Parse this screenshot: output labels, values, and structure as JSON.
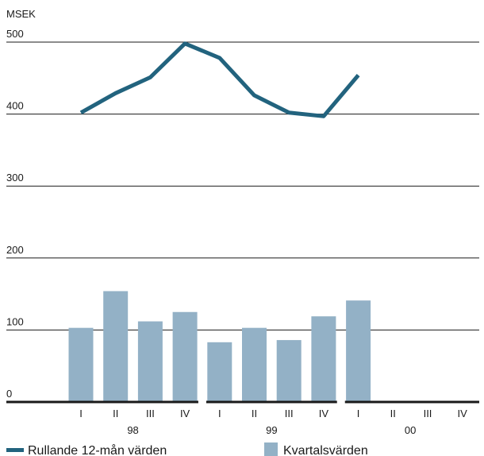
{
  "chart_data": {
    "type": "bar",
    "ylabel": "MSEK",
    "ylim": [
      0,
      500
    ],
    "yticks": [
      0,
      100,
      200,
      300,
      400,
      500
    ],
    "grid": true,
    "categories": [
      "I",
      "II",
      "III",
      "IV",
      "I",
      "II",
      "III",
      "IV",
      "I",
      "II",
      "III",
      "IV"
    ],
    "years": [
      {
        "label": "98",
        "quarters": [
          0,
          1,
          2,
          3
        ]
      },
      {
        "label": "99",
        "quarters": [
          4,
          5,
          6,
          7
        ]
      },
      {
        "label": "00",
        "quarters": [
          8,
          9,
          10,
          11
        ]
      }
    ],
    "series": [
      {
        "name": "Kvartalsvärden",
        "type": "bar",
        "color": "#93b1c6",
        "values": [
          103,
          154,
          112,
          125,
          83,
          103,
          86,
          119,
          141,
          null,
          null,
          null
        ]
      },
      {
        "name": "Rullande 12-mån värden",
        "type": "line",
        "color": "#22637e",
        "values": [
          402,
          429,
          451,
          498,
          478,
          426,
          402,
          397,
          454,
          null,
          null,
          null
        ]
      }
    ],
    "legend_position": "bottom"
  }
}
